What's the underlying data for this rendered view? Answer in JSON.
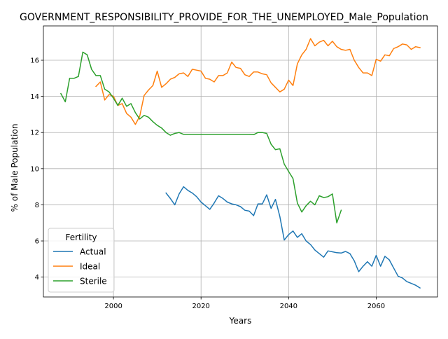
{
  "chart_data": {
    "type": "line",
    "title": "GOVERNMENT_RESPONSIBILITY_PROVIDE_FOR_THE_UNEMPLOYED_Male_Population",
    "xlabel": "Years",
    "ylabel": "% of Male Population",
    "xlim": [
      1984,
      2074
    ],
    "ylim": [
      2.9,
      17.9
    ],
    "xticks": [
      2000,
      2020,
      2040,
      2060
    ],
    "yticks": [
      4,
      6,
      8,
      10,
      12,
      14,
      16
    ],
    "grid": true,
    "legend": {
      "title": "Fertility",
      "position": "lower-left"
    },
    "series": [
      {
        "name": "Actual",
        "color": "#1f77b4",
        "x": [
          2012,
          2013,
          2014,
          2015,
          2016,
          2017,
          2018,
          2019,
          2020,
          2021,
          2022,
          2023,
          2024,
          2025,
          2026,
          2027,
          2028,
          2029,
          2030,
          2031,
          2032,
          2033,
          2034,
          2035,
          2036,
          2037,
          2038,
          2039,
          2040,
          2041,
          2042,
          2043,
          2044,
          2045,
          2046,
          2047,
          2048,
          2049,
          2050,
          2051,
          2052,
          2053,
          2054,
          2055,
          2056,
          2057,
          2058,
          2059,
          2060,
          2061,
          2062,
          2063,
          2064,
          2065,
          2066,
          2067,
          2068,
          2069,
          2070
        ],
        "y": [
          8.65,
          8.35,
          8.0,
          8.6,
          9.0,
          8.8,
          8.65,
          8.45,
          8.15,
          7.95,
          7.75,
          8.1,
          8.5,
          8.35,
          8.15,
          8.05,
          8.0,
          7.9,
          7.7,
          7.65,
          7.4,
          8.05,
          8.05,
          8.55,
          7.8,
          8.3,
          7.35,
          6.05,
          6.35,
          6.55,
          6.2,
          6.4,
          6.0,
          5.8,
          5.5,
          5.3,
          5.1,
          5.45,
          5.4,
          5.35,
          5.33,
          5.42,
          5.3,
          4.9,
          4.3,
          4.6,
          4.85,
          4.6,
          5.2,
          4.6,
          5.15,
          4.95,
          4.5,
          4.05,
          3.95,
          3.75,
          3.65,
          3.55,
          3.4
        ]
      },
      {
        "name": "Ideal",
        "color": "#ff7f0e",
        "x": [
          1996,
          1997,
          1998,
          1999,
          2000,
          2001,
          2002,
          2003,
          2004,
          2005,
          2006,
          2007,
          2008,
          2009,
          2010,
          2011,
          2012,
          2013,
          2014,
          2015,
          2016,
          2017,
          2018,
          2019,
          2020,
          2021,
          2022,
          2023,
          2024,
          2025,
          2026,
          2027,
          2028,
          2029,
          2030,
          2031,
          2032,
          2033,
          2034,
          2035,
          2036,
          2037,
          2038,
          2039,
          2040,
          2041,
          2042,
          2043,
          2044,
          2045,
          2046,
          2047,
          2048,
          2049,
          2050,
          2051,
          2052,
          2053,
          2054,
          2055,
          2056,
          2057,
          2058,
          2059,
          2060,
          2061,
          2062,
          2063,
          2064,
          2065,
          2066,
          2067,
          2068,
          2069,
          2070
        ],
        "y": [
          14.55,
          14.8,
          13.8,
          14.1,
          14.0,
          13.5,
          13.6,
          13.05,
          12.85,
          12.45,
          12.9,
          14.05,
          14.35,
          14.6,
          15.4,
          14.5,
          14.7,
          14.95,
          15.05,
          15.25,
          15.3,
          15.1,
          15.5,
          15.45,
          15.4,
          15.0,
          14.95,
          14.8,
          15.15,
          15.15,
          15.3,
          15.9,
          15.6,
          15.55,
          15.2,
          15.1,
          15.35,
          15.35,
          15.25,
          15.2,
          14.75,
          14.5,
          14.25,
          14.4,
          14.9,
          14.6,
          15.8,
          16.3,
          16.6,
          17.2,
          16.8,
          17.0,
          17.1,
          16.8,
          17.05,
          16.75,
          16.6,
          16.55,
          16.6,
          16.0,
          15.6,
          15.3,
          15.3,
          15.15,
          16.05,
          15.95,
          16.3,
          16.25,
          16.65,
          16.75,
          16.9,
          16.85,
          16.6,
          16.75,
          16.7
        ]
      },
      {
        "name": "Sterile",
        "color": "#2ca02c",
        "x": [
          1988,
          1989,
          1990,
          1991,
          1992,
          1993,
          1994,
          1995,
          1996,
          1997,
          1998,
          1999,
          2000,
          2001,
          2002,
          2003,
          2004,
          2005,
          2006,
          2007,
          2008,
          2009,
          2010,
          2011,
          2012,
          2013,
          2014,
          2015,
          2016,
          2017,
          2018,
          2019,
          2020,
          2021,
          2022,
          2023,
          2024,
          2025,
          2026,
          2027,
          2028,
          2029,
          2030,
          2031,
          2032,
          2033,
          2034,
          2035,
          2036,
          2037,
          2038,
          2039,
          2040,
          2041,
          2042,
          2043,
          2044,
          2045,
          2046,
          2047,
          2048,
          2049,
          2050,
          2051,
          2052
        ],
        "y": [
          14.15,
          13.7,
          15.0,
          15.0,
          15.1,
          16.45,
          16.3,
          15.5,
          15.15,
          15.15,
          14.4,
          14.25,
          13.9,
          13.5,
          13.9,
          13.45,
          13.6,
          13.1,
          12.75,
          12.95,
          12.85,
          12.6,
          12.4,
          12.25,
          12.0,
          11.85,
          11.95,
          12.0,
          11.9,
          11.9,
          11.9,
          11.9,
          11.9,
          11.9,
          11.9,
          11.9,
          11.9,
          11.9,
          11.9,
          11.9,
          11.9,
          11.9,
          11.9,
          11.9,
          11.88,
          12.0,
          12.0,
          11.95,
          11.35,
          11.05,
          11.1,
          10.25,
          9.85,
          9.45,
          8.1,
          7.6,
          7.95,
          8.2,
          8.0,
          8.5,
          8.4,
          8.45,
          8.6,
          7.0,
          7.7
        ]
      }
    ]
  }
}
